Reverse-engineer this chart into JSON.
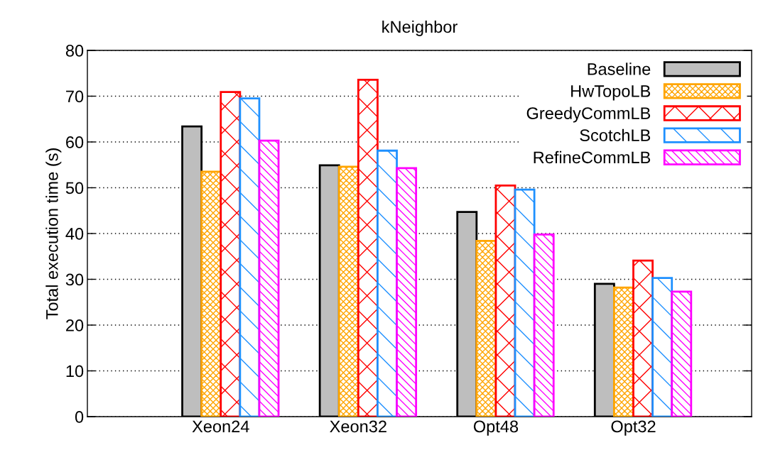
{
  "chart_data": {
    "type": "bar",
    "title": "kNeighbor",
    "ylabel": "Total execution time (s)",
    "categories": [
      "Xeon24",
      "Xeon32",
      "Opt48",
      "Opt32"
    ],
    "series": [
      {
        "name": "Baseline",
        "color": "#bebebe",
        "values": [
          63.4,
          54.9,
          44.7,
          29.0
        ]
      },
      {
        "name": "HwTopoLB",
        "color": "#ffa500",
        "values": [
          53.5,
          54.6,
          38.4,
          28.2
        ]
      },
      {
        "name": "GreedyCommLB",
        "color": "#ff0000",
        "values": [
          70.9,
          73.6,
          50.5,
          34.1
        ]
      },
      {
        "name": "ScotchLB",
        "color": "#1e90ff",
        "values": [
          69.5,
          58.1,
          49.6,
          30.3
        ]
      },
      {
        "name": "RefineCommLB",
        "color": "#ff00ff",
        "values": [
          60.3,
          54.3,
          39.8,
          27.3
        ]
      }
    ],
    "ylim": [
      0,
      80
    ],
    "yticks": [
      0,
      10,
      20,
      30,
      40,
      50,
      60,
      70,
      80
    ],
    "grid": "y",
    "legend": "top right"
  }
}
